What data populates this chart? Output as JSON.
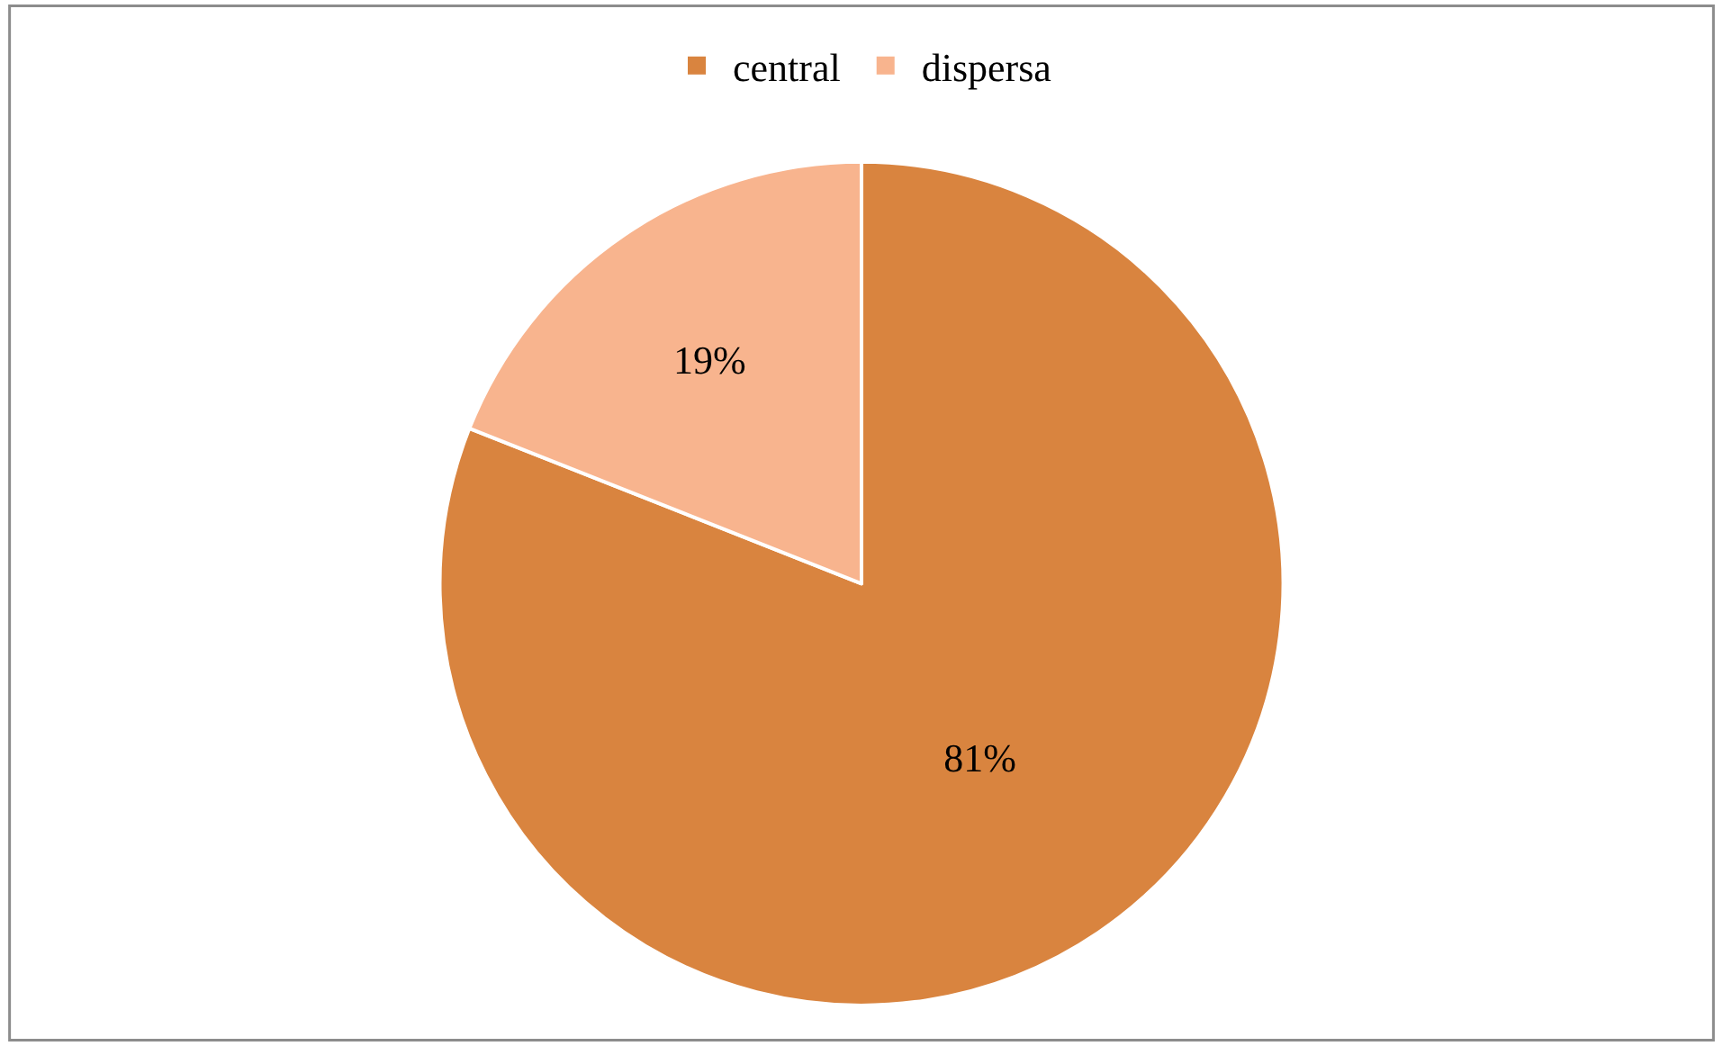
{
  "chart_data": {
    "type": "pie",
    "categories": [
      "central",
      "dispersa"
    ],
    "values": [
      81,
      19
    ],
    "colors": [
      "#d9843f",
      "#f8b48e"
    ],
    "value_labels": [
      "81%",
      "19%"
    ],
    "legend": "top"
  }
}
